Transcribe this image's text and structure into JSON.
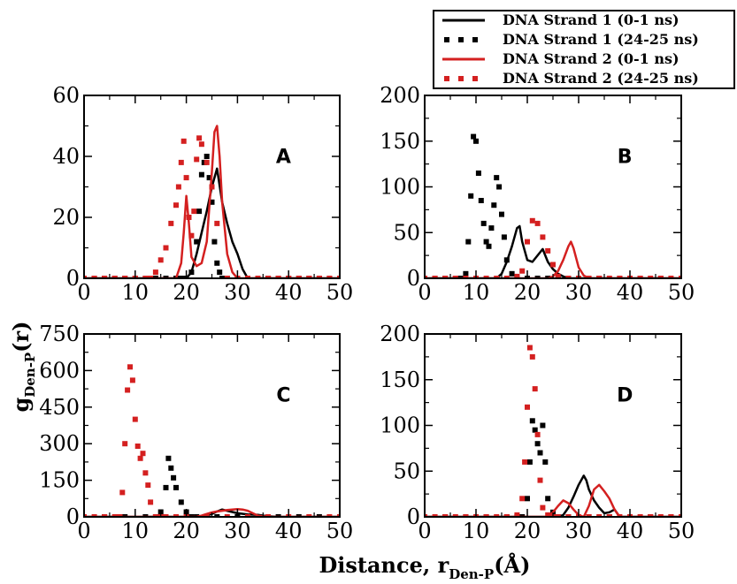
{
  "chart_data": {
    "type": "line",
    "xlabel": {
      "main": "Distance, r",
      "sub": "Den-P",
      "tail": "(Å)"
    },
    "ylabel": {
      "main": "g",
      "sub": "Den-P",
      "tail": "(r)"
    },
    "xlim": [
      0,
      50
    ],
    "x_ticks": [
      "0",
      "10",
      "20",
      "30",
      "40",
      "50"
    ],
    "grid": false,
    "legend_position": "top-right",
    "legend": [
      {
        "label": "DNA Strand 1 (0-1 ns)",
        "color": "#000000",
        "style": "solid"
      },
      {
        "label": "DNA Strand 1 (24-25 ns)",
        "color": "#000000",
        "style": "dotted"
      },
      {
        "label": "DNA Strand 2 (0-1 ns)",
        "color": "#d42020",
        "style": "solid"
      },
      {
        "label": "DNA Strand 2 (24-25 ns)",
        "color": "#d42020",
        "style": "dotted"
      }
    ],
    "panels": [
      {
        "letter": "A",
        "ylim": [
          0,
          60
        ],
        "y_ticks": [
          "0",
          "20",
          "40",
          "60"
        ],
        "series": [
          {
            "x": [
              0,
              2,
              4,
              6,
              8,
              10,
              12,
              14,
              16,
              18,
              20,
              21,
              22,
              23,
              24,
              25,
              26,
              27,
              28,
              29,
              30,
              31,
              32,
              34,
              36,
              38,
              40,
              42,
              44,
              46,
              48,
              50
            ],
            "y": [
              0,
              0,
              0,
              0,
              0,
              0,
              0,
              0,
              0,
              0,
              0,
              2,
              8,
              15,
              22,
              30,
              36,
              25,
              18,
              12,
              8,
              3,
              0,
              0,
              0,
              0,
              0,
              0,
              0,
              0,
              0,
              0
            ]
          },
          {
            "x": [
              0,
              2,
              4,
              6,
              8,
              10,
              12,
              14,
              16,
              18,
              19,
              20,
              21,
              22,
              22.5,
              23,
              23.5,
              24,
              24.5,
              25,
              25.5,
              26,
              26.5,
              27,
              28,
              30,
              32,
              34,
              36,
              38,
              40,
              42,
              44,
              46,
              48,
              50
            ],
            "y": [
              0,
              0,
              0,
              0,
              0,
              0,
              0,
              0,
              0,
              0,
              0,
              0,
              2,
              12,
              22,
              34,
              38,
              40,
              33,
              25,
              12,
              5,
              2,
              0,
              0,
              0,
              0,
              0,
              0,
              0,
              0,
              0,
              0,
              0,
              0,
              0
            ]
          },
          {
            "x": [
              0,
              4,
              8,
              12,
              16,
              18,
              19,
              19.5,
              20,
              20.5,
              21,
              22,
              23,
              24,
              25,
              25.5,
              26,
              26.5,
              27,
              28,
              29,
              30,
              32,
              36,
              40,
              44,
              48,
              50
            ],
            "y": [
              0,
              0,
              0,
              0,
              0,
              0,
              5,
              15,
              27,
              18,
              7,
              4,
              5,
              12,
              35,
              48,
              50,
              40,
              25,
              8,
              2,
              0,
              0,
              0,
              0,
              0,
              0,
              0
            ]
          },
          {
            "x": [
              0,
              2,
              4,
              6,
              8,
              10,
              12,
              13,
              14,
              15,
              16,
              17,
              18,
              18.5,
              19,
              19.5,
              20,
              20.5,
              21,
              21.5,
              22,
              22.5,
              23,
              24,
              25,
              26,
              28,
              30,
              32,
              34,
              36,
              38,
              40,
              42,
              44,
              46,
              48,
              50
            ],
            "y": [
              0,
              0,
              0,
              0,
              0,
              0,
              0,
              0,
              2,
              6,
              10,
              18,
              24,
              30,
              38,
              45,
              33,
              20,
              14,
              22,
              39,
              46,
              44,
              38,
              30,
              18,
              0,
              0,
              0,
              0,
              0,
              0,
              0,
              0,
              0,
              0,
              0,
              0
            ]
          }
        ]
      },
      {
        "letter": "B",
        "ylim": [
          0,
          200
        ],
        "y_ticks": [
          "0",
          "50",
          "100",
          "150",
          "200"
        ],
        "series": [
          {
            "x": [
              0,
              4,
              8,
              12,
              14,
              15,
              16,
              17,
              18,
              18.5,
              19,
              20,
              21,
              22,
              23,
              24,
              25,
              26,
              27,
              28,
              30,
              34,
              38,
              42,
              46,
              50
            ],
            "y": [
              0,
              0,
              0,
              0,
              0,
              5,
              18,
              35,
              55,
              57,
              40,
              20,
              18,
              25,
              32,
              18,
              10,
              5,
              2,
              0,
              0,
              0,
              0,
              0,
              0,
              0
            ]
          },
          {
            "x": [
              0,
              2,
              4,
              6,
              7,
              8,
              8.5,
              9,
              9.5,
              10,
              10.5,
              11,
              11.5,
              12,
              12.5,
              13,
              13.5,
              14,
              14.5,
              15,
              15.5,
              16,
              17,
              18,
              20,
              22,
              24,
              26,
              28,
              30,
              34,
              38,
              42,
              46,
              50
            ],
            "y": [
              0,
              0,
              0,
              0,
              0,
              5,
              40,
              90,
              155,
              150,
              115,
              85,
              60,
              40,
              35,
              55,
              80,
              110,
              100,
              70,
              45,
              20,
              5,
              0,
              0,
              0,
              0,
              0,
              0,
              0,
              0,
              0,
              0,
              0,
              0
            ]
          },
          {
            "x": [
              0,
              4,
              8,
              12,
              16,
              20,
              22,
              24,
              25,
              26,
              27,
              28,
              28.5,
              29,
              30,
              31,
              32,
              34,
              38,
              42,
              46,
              50
            ],
            "y": [
              0,
              0,
              0,
              0,
              0,
              0,
              0,
              0,
              2,
              8,
              20,
              35,
              40,
              33,
              12,
              3,
              0,
              0,
              0,
              0,
              0,
              0
            ]
          },
          {
            "x": [
              0,
              2,
              4,
              6,
              8,
              10,
              12,
              14,
              16,
              18,
              19,
              20,
              21,
              22,
              23,
              24,
              25,
              26,
              28,
              30,
              32,
              34,
              36,
              38,
              40,
              42,
              44,
              46,
              48,
              50
            ],
            "y": [
              0,
              0,
              0,
              0,
              0,
              0,
              0,
              0,
              0,
              2,
              8,
              40,
              63,
              60,
              45,
              30,
              15,
              2,
              0,
              0,
              0,
              0,
              0,
              0,
              0,
              0,
              0,
              0,
              0,
              0
            ]
          }
        ]
      },
      {
        "letter": "C",
        "ylim": [
          0,
          750
        ],
        "y_ticks": [
          "0",
          "150",
          "300",
          "450",
          "600",
          "750"
        ],
        "series": [
          {
            "x": [
              0,
              4,
              8,
              12,
              16,
              20,
              22,
              24,
              25,
              26,
              27,
              28,
              30,
              32,
              34,
              36,
              38,
              40,
              44,
              48,
              50
            ],
            "y": [
              0,
              0,
              0,
              0,
              0,
              0,
              0,
              5,
              12,
              22,
              30,
              25,
              15,
              10,
              8,
              2,
              0,
              0,
              0,
              0,
              0
            ]
          },
          {
            "x": [
              0,
              4,
              8,
              12,
              14,
              15,
              16,
              16.5,
              17,
              17.5,
              18,
              19,
              20,
              21,
              22,
              24,
              26,
              30,
              34,
              38,
              42,
              46,
              50
            ],
            "y": [
              0,
              0,
              0,
              0,
              0,
              20,
              120,
              240,
              200,
              160,
              120,
              60,
              20,
              0,
              0,
              0,
              0,
              0,
              0,
              0,
              0,
              0,
              0
            ]
          },
          {
            "x": [
              0,
              4,
              8,
              12,
              16,
              20,
              22,
              23,
              24,
              25,
              26,
              27,
              28,
              29,
              30,
              31,
              32,
              33,
              34,
              36,
              40,
              44,
              48,
              50
            ],
            "y": [
              0,
              0,
              0,
              0,
              0,
              0,
              0,
              5,
              12,
              18,
              22,
              25,
              28,
              30,
              32,
              30,
              25,
              15,
              5,
              0,
              0,
              0,
              0,
              0
            ]
          },
          {
            "x": [
              0,
              2,
              4,
              6,
              7,
              7.5,
              8,
              8.5,
              9,
              9.5,
              10,
              10.5,
              11,
              11.5,
              12,
              12.5,
              13,
              14,
              15,
              16,
              18,
              20,
              24,
              28,
              32,
              36,
              40,
              44,
              48,
              50
            ],
            "y": [
              0,
              0,
              0,
              0,
              0,
              100,
              300,
              520,
              615,
              560,
              400,
              290,
              240,
              260,
              180,
              130,
              60,
              0,
              0,
              0,
              0,
              0,
              0,
              0,
              0,
              0,
              0,
              0,
              0,
              0
            ]
          }
        ]
      },
      {
        "letter": "D",
        "ylim": [
          0,
          200
        ],
        "y_ticks": [
          "0",
          "50",
          "100",
          "150",
          "200"
        ],
        "series": [
          {
            "x": [
              0,
              4,
              8,
              12,
              16,
              20,
              22,
              24,
              26,
              27,
              28,
              29,
              30,
              31,
              31.5,
              32,
              33,
              34,
              35,
              36,
              37,
              38,
              40,
              44,
              48,
              50
            ],
            "y": [
              0,
              0,
              0,
              0,
              0,
              0,
              0,
              0,
              0,
              2,
              10,
              22,
              35,
              45,
              40,
              30,
              18,
              10,
              4,
              5,
              8,
              0,
              0,
              0,
              0,
              0
            ]
          },
          {
            "x": [
              0,
              4,
              8,
              12,
              16,
              18,
              19,
              20,
              20.5,
              21,
              21.5,
              22,
              22.5,
              23,
              23.5,
              24,
              25,
              26,
              28,
              32,
              36,
              40,
              44,
              48,
              50
            ],
            "y": [
              0,
              0,
              0,
              0,
              0,
              0,
              0,
              20,
              60,
              105,
              95,
              80,
              70,
              100,
              60,
              20,
              5,
              0,
              0,
              0,
              0,
              0,
              0,
              0,
              0
            ]
          },
          {
            "x": [
              0,
              4,
              8,
              12,
              16,
              20,
              22,
              24,
              25,
              26,
              27,
              28,
              29,
              30,
              31,
              32,
              33,
              34,
              35,
              36,
              37,
              38,
              40,
              44,
              48,
              50
            ],
            "y": [
              0,
              0,
              0,
              0,
              0,
              0,
              0,
              0,
              5,
              12,
              18,
              15,
              8,
              2,
              0,
              12,
              30,
              35,
              28,
              20,
              8,
              0,
              0,
              0,
              0,
              0
            ]
          },
          {
            "x": [
              0,
              2,
              4,
              6,
              8,
              10,
              12,
              14,
              16,
              18,
              19,
              19.5,
              20,
              20.5,
              21,
              21.5,
              22,
              22.5,
              23,
              24,
              25,
              26,
              28,
              30,
              32,
              34,
              36,
              38,
              40,
              42,
              44,
              46,
              48,
              50
            ],
            "y": [
              0,
              0,
              0,
              0,
              0,
              0,
              0,
              0,
              0,
              2,
              20,
              60,
              120,
              185,
              175,
              140,
              90,
              40,
              10,
              2,
              0,
              0,
              0,
              0,
              0,
              0,
              0,
              0,
              0,
              0,
              0,
              0,
              0,
              0
            ]
          }
        ]
      }
    ]
  }
}
